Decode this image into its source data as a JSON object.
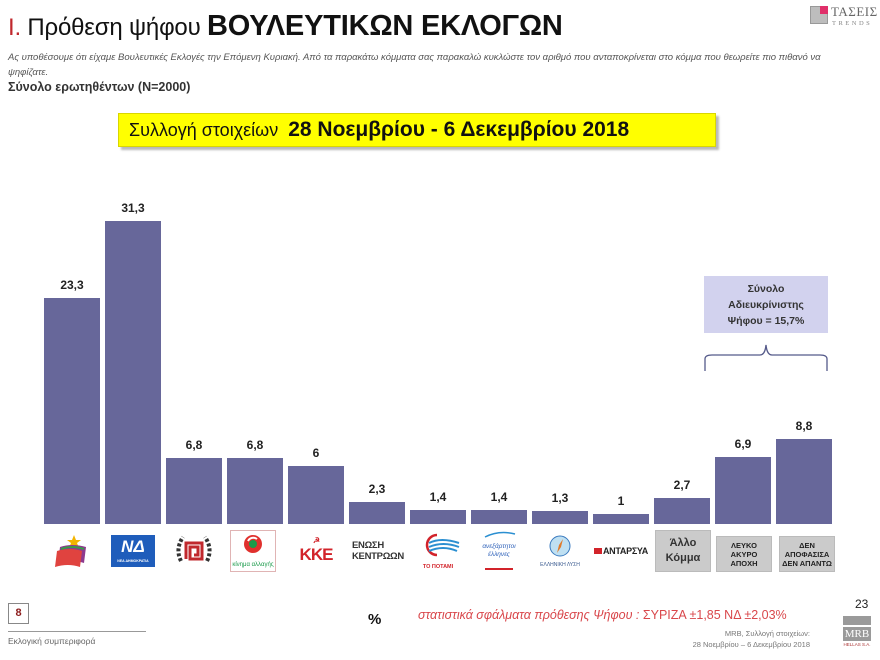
{
  "header": {
    "title_number": "I.",
    "title_regular": "Πρόθεση ψήφου",
    "title_bold": "ΒΟΥΛΕΥΤΙΚΩΝ ΕΚΛΟΓΩΝ",
    "question": "Ας υποθέσουμε ότι είχαμε Βουλευτικές Εκλογές την Επόμενη Κυριακή. Από τα παρακάτω κόμματα σας παρακαλώ κυκλώστε τον αριθμό που ανταποκρίνεται στο κόμμα που θεωρείτε πιο πιθανό να ψηφίζατε.",
    "sample": "Σύνολο ερωτηθέντων (N=2000)",
    "brand_top": "ΤΑΣΕΙΣ",
    "brand_bottom": "TRENDS"
  },
  "banner": {
    "label": "Συλλογή στοιχείων",
    "date": "28 Νοεμβρίου - 6 Δεκεμβρίου 2018"
  },
  "chart_data": {
    "type": "bar",
    "title": "Πρόθεση ψήφου ΒΟΥΛΕΥΤΙΚΩΝ ΕΚΛΟΓΩΝ",
    "xlabel": "",
    "ylabel": "%",
    "unit": "%",
    "categories": [
      "ΣΥΡΙΖΑ",
      "Νέα Δημοκρατία",
      "Χρυσή Αυγή",
      "Κίνημα Αλλαγής",
      "ΚΚΕ",
      "Ένωση Κεντρώων",
      "Το Ποτάμι",
      "Ανεξάρτητοι Έλληνες",
      "Ελληνική Λύση",
      "ΑΝΤΑΡΣΥΑ",
      "Άλλο Κόμμα",
      "Λευκό / Άκυρο / Αποχή",
      "Δεν αποφάσισα / Δεν απαντώ"
    ],
    "values": [
      23.3,
      31.3,
      6.8,
      6.8,
      6,
      2.3,
      1.4,
      1.4,
      1.3,
      1,
      2.7,
      6.9,
      8.8
    ],
    "value_labels": [
      "23,3",
      "31,3",
      "6,8",
      "6,8",
      "6",
      "2,3",
      "1,4",
      "1,4",
      "1,3",
      "1",
      "2,7",
      "6,9",
      "8,8"
    ],
    "bar_color": "#67679a",
    "grid": false,
    "legend": null,
    "annotations": [
      {
        "text": "Σύνολο Αδιευκρίνιστης Ψήφου = 15,7%",
        "spans": [
          "Λευκό / Άκυρο / Αποχή",
          "Δεν αποφάσισα / Δεν απαντώ"
        ]
      }
    ]
  },
  "logos": [
    {
      "name": "syriza-logo",
      "text": ""
    },
    {
      "name": "nd-logo",
      "text": "ΝΔ",
      "sub": "ΝΕΑ ΔΗΜΟΚΡΑΤΙΑ"
    },
    {
      "name": "golden-dawn-logo",
      "text": ""
    },
    {
      "name": "kinal-logo",
      "text": "κίνημα αλλαγής"
    },
    {
      "name": "kke-logo",
      "text": "ΚΚΕ"
    },
    {
      "name": "enosi-kentroon-logo",
      "text": "ΕΝΩΣΗ ΚΕΝΤΡΩΩΝ"
    },
    {
      "name": "potami-logo",
      "text": "ΤΟ ΠΟΤΑΜΙ"
    },
    {
      "name": "anel-logo",
      "text": "ανεξάρτητοι έλληνες"
    },
    {
      "name": "elliniki-lysi-logo",
      "text": "ΕΛΛΗΝΙΚΗ ΛΥΣΗ"
    },
    {
      "name": "antarsya-logo",
      "text": "ΑΝΤΑΡΣΥΑ"
    },
    {
      "name": "allo-komma-label",
      "text": "Άλλο Κόμμα"
    },
    {
      "name": "lefko-akyro-label",
      "text": "ΛΕΥΚΟ ΑΚΥΡΟ ΑΠΟΧΗ"
    },
    {
      "name": "den-apofasisa-label",
      "text": "ΔΕΝ ΑΠΟΦΑΣΙΣΑ ΔΕΝ ΑΠΑΝΤΩ"
    }
  ],
  "annotation": {
    "line1": "Σύνολο",
    "line2": "Αδιευκρίνιστης",
    "line3": "Ψήφου = 15,7%"
  },
  "footer": {
    "page_box": "8",
    "section": "Εκλογική συμπεριφορά",
    "percent_sign": "%",
    "errors_label": "στατιστικά σφάλματα πρόθεσης Ψήφου : ",
    "errors_values": "ΣΥΡΙΖΑ ±1,85 ΝΔ ±2,03%",
    "source_line1": "MRB, Συλλογή στοιχείων:",
    "source_line2": "28 Νοεμβρίου – 6 Δεκεμβρίου 2018",
    "page_number": "23",
    "mrb_logo": "MRB",
    "mrb_sub": "HELLAS S.A."
  }
}
